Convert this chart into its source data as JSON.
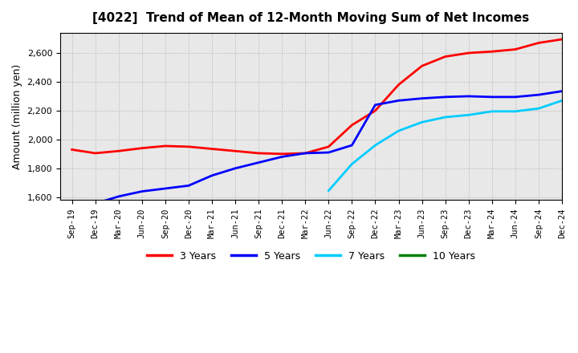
{
  "title": "[4022]  Trend of Mean of 12-Month Moving Sum of Net Incomes",
  "ylabel": "Amount (million yen)",
  "ylim": [
    1580,
    2740
  ],
  "yticks": [
    1600,
    1800,
    2000,
    2200,
    2400,
    2600
  ],
  "background_color": "#ffffff",
  "plot_bg_color": "#e8e8e8",
  "grid_color": "#aaaaaa",
  "tick_labels": [
    "Sep-19",
    "Dec-19",
    "Mar-20",
    "Jun-20",
    "Sep-20",
    "Dec-20",
    "Mar-21",
    "Jun-21",
    "Sep-21",
    "Dec-21",
    "Mar-22",
    "Jun-22",
    "Sep-22",
    "Dec-22",
    "Mar-23",
    "Jun-23",
    "Sep-23",
    "Dec-23",
    "Mar-24",
    "Jun-24",
    "Sep-24",
    "Dec-24"
  ],
  "series": {
    "3 Years": {
      "color": "#ff0000",
      "data_x": [
        0,
        1,
        2,
        3,
        4,
        5,
        6,
        7,
        8,
        9,
        10,
        11,
        12,
        13,
        14,
        15,
        16,
        17,
        18,
        19,
        20,
        21
      ],
      "data_y": [
        1930,
        1905,
        1920,
        1940,
        1955,
        1950,
        1935,
        1920,
        1905,
        1900,
        1905,
        1950,
        2100,
        2200,
        2380,
        2510,
        2575,
        2600,
        2610,
        2625,
        2670,
        2695
      ]
    },
    "5 Years": {
      "color": "#0000ff",
      "data_x": [
        1,
        2,
        3,
        4,
        5,
        6,
        7,
        8,
        9,
        10,
        11,
        12,
        13,
        14,
        15,
        16,
        17,
        18,
        19,
        20,
        21
      ],
      "data_y": [
        1555,
        1605,
        1640,
        1660,
        1680,
        1750,
        1800,
        1840,
        1880,
        1905,
        1910,
        1960,
        2240,
        2270,
        2285,
        2295,
        2300,
        2295,
        2295,
        2310,
        2335
      ]
    },
    "7 Years": {
      "color": "#00ccff",
      "data_x": [
        11,
        12,
        13,
        14,
        15,
        16,
        17,
        18,
        19,
        20,
        21
      ],
      "data_y": [
        1645,
        1830,
        1960,
        2060,
        2120,
        2155,
        2170,
        2195,
        2195,
        2215,
        2270
      ]
    },
    "10 Years": {
      "color": "#008000",
      "data_x": [],
      "data_y": []
    }
  },
  "series_order": [
    "3 Years",
    "5 Years",
    "7 Years",
    "10 Years"
  ],
  "legend_entries": [
    "3 Years",
    "5 Years",
    "7 Years",
    "10 Years"
  ],
  "legend_colors": [
    "#ff0000",
    "#0000ff",
    "#00ccff",
    "#008000"
  ]
}
